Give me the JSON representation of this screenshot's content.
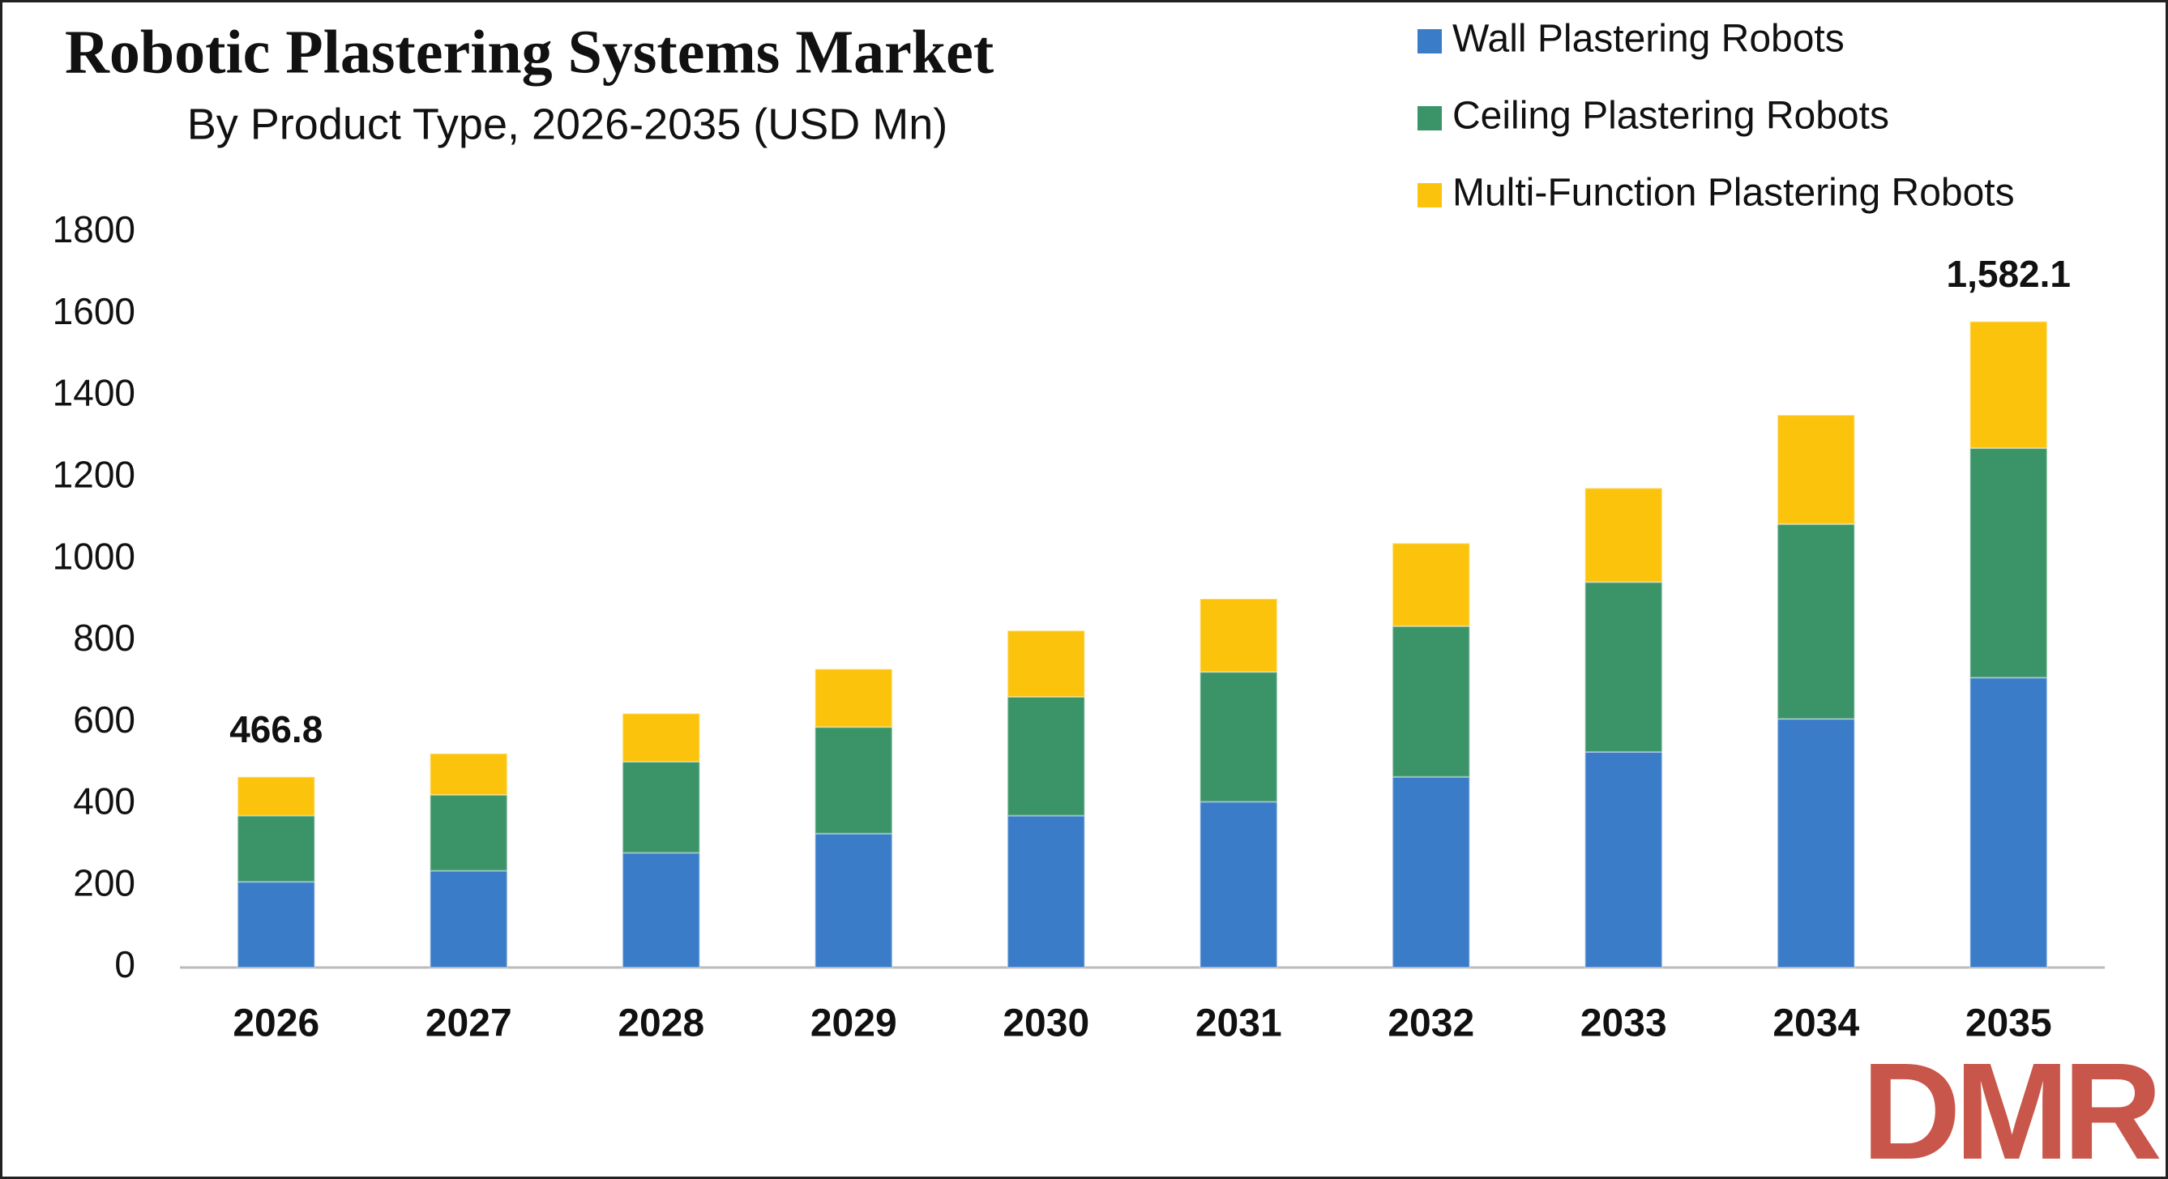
{
  "chart_data": {
    "type": "stacked-bar",
    "title": "Robotic Plastering Systems Market",
    "subtitle": "By Product Type, 2026-2035 (USD Mn)",
    "categories": [
      "2026",
      "2027",
      "2028",
      "2029",
      "2030",
      "2031",
      "2032",
      "2033",
      "2034",
      "2035"
    ],
    "series": [
      {
        "name": "Wall Plastering Robots",
        "color": "#3a7cc8",
        "values": [
          210,
          237,
          281,
          328,
          372,
          406,
          467,
          528,
          609,
          710
        ]
      },
      {
        "name": "Ceiling Plastering Robots",
        "color": "#3a9468",
        "values": [
          162,
          186,
          223,
          261,
          291,
          318,
          369,
          416,
          477,
          562
        ]
      },
      {
        "name": "Multi-Function Plastering Robots",
        "color": "#fcc30c",
        "values": [
          94.8,
          101,
          118,
          142,
          162,
          179,
          203,
          230,
          267,
          310.1
        ]
      }
    ],
    "totals": [
      466.8,
      null,
      null,
      null,
      null,
      null,
      null,
      null,
      null,
      1582.1
    ],
    "total_labels": [
      "466.8",
      null,
      null,
      null,
      null,
      null,
      null,
      null,
      null,
      "1,582.1"
    ],
    "ylim": [
      0,
      1800
    ],
    "yticks": [
      0,
      200,
      400,
      600,
      800,
      1000,
      1200,
      1400,
      1600,
      1800
    ],
    "grid": false,
    "legend": "top-right"
  },
  "logo": "DMR"
}
